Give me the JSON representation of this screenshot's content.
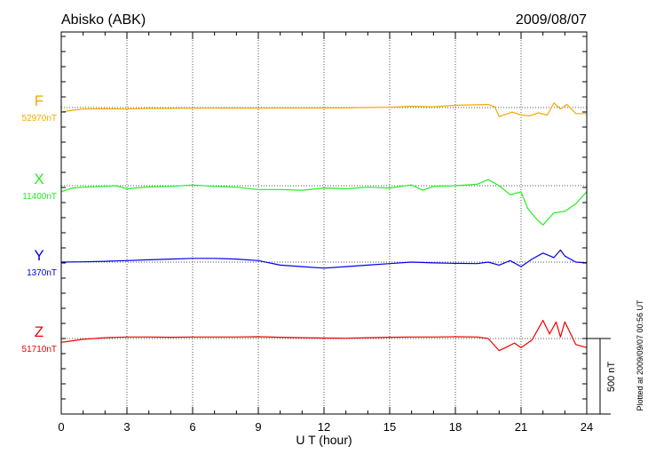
{
  "header": {
    "station": "Abisko (ABK)",
    "date": "2009/08/07"
  },
  "side_note": "Plotted at 2009/09/07 00:56 UT",
  "chart_data": {
    "type": "line",
    "xlabel": "U T (hour)",
    "xlim": [
      0,
      24
    ],
    "xticks": [
      "0",
      "3",
      "6",
      "9",
      "12",
      "15",
      "18",
      "21",
      "24"
    ],
    "scale_bar": {
      "value": 500,
      "label": "500 nT"
    },
    "grid": true,
    "series": [
      {
        "name": "F",
        "baseline_label": "52970nT",
        "color": "#f5a800",
        "x": [
          0,
          0.5,
          1,
          2,
          3,
          4,
          5,
          6,
          7,
          8,
          9,
          10,
          11,
          12,
          13,
          14,
          15,
          16,
          17,
          18,
          19,
          19.5,
          19.8,
          20,
          20.3,
          20.6,
          21,
          21.4,
          21.8,
          22.2,
          22.5,
          22.8,
          23.1,
          23.5,
          24
        ],
        "values": [
          -30,
          -18,
          -10,
          -8,
          -10,
          -6,
          -6,
          -5,
          -4,
          -5,
          -5,
          -3,
          -4,
          -3,
          -3,
          0,
          2,
          8,
          5,
          15,
          18,
          20,
          5,
          -60,
          -45,
          -30,
          -50,
          -55,
          -35,
          -50,
          30,
          -10,
          20,
          -40,
          -40
        ]
      },
      {
        "name": "X",
        "baseline_label": "11400nT",
        "color": "#22ee22",
        "x": [
          0,
          0.5,
          1,
          2,
          2.5,
          3,
          4,
          5,
          6,
          7,
          8,
          9,
          10,
          11,
          12,
          13,
          14,
          15,
          16,
          16.5,
          17,
          18,
          19,
          19.5,
          20,
          20.5,
          21,
          21.3,
          21.7,
          22,
          22.5,
          23,
          23.5,
          24
        ],
        "values": [
          -40,
          -15,
          -10,
          -5,
          0,
          -20,
          -8,
          -5,
          5,
          -5,
          -10,
          -25,
          -25,
          -30,
          -15,
          -20,
          -10,
          -15,
          5,
          -30,
          -5,
          0,
          10,
          40,
          0,
          -60,
          -40,
          -150,
          -220,
          -260,
          -180,
          -170,
          -120,
          -40
        ]
      },
      {
        "name": "Y",
        "baseline_label": "1370nT",
        "color": "#0000ee",
        "x": [
          0,
          1,
          2,
          3,
          4,
          5,
          6,
          7,
          8,
          9,
          10,
          11,
          12,
          13,
          14,
          15,
          16,
          17,
          18,
          19,
          19.5,
          20,
          20.5,
          21,
          21.5,
          22,
          22.5,
          22.8,
          23,
          23.5,
          24
        ],
        "values": [
          0,
          2,
          5,
          10,
          15,
          20,
          25,
          25,
          20,
          10,
          -20,
          -30,
          -40,
          -30,
          -20,
          -10,
          0,
          -5,
          -8,
          -10,
          0,
          -20,
          10,
          -30,
          20,
          60,
          30,
          80,
          40,
          0,
          -5
        ]
      },
      {
        "name": "Z",
        "baseline_label": "51710nT",
        "color": "#ee0000",
        "x": [
          0,
          0.5,
          1,
          2,
          3,
          4,
          5,
          6,
          7,
          8,
          9,
          10,
          11,
          12,
          13,
          14,
          15,
          16,
          17,
          18,
          19,
          19.5,
          20,
          20.3,
          20.7,
          21,
          21.5,
          22,
          22.3,
          22.6,
          22.8,
          23,
          23.5,
          24
        ],
        "values": [
          -25,
          -15,
          -5,
          5,
          10,
          10,
          8,
          10,
          10,
          10,
          12,
          8,
          5,
          3,
          2,
          5,
          8,
          10,
          10,
          12,
          10,
          0,
          -80,
          -60,
          -30,
          -60,
          -10,
          120,
          30,
          110,
          10,
          110,
          -40,
          -60
        ]
      }
    ]
  }
}
